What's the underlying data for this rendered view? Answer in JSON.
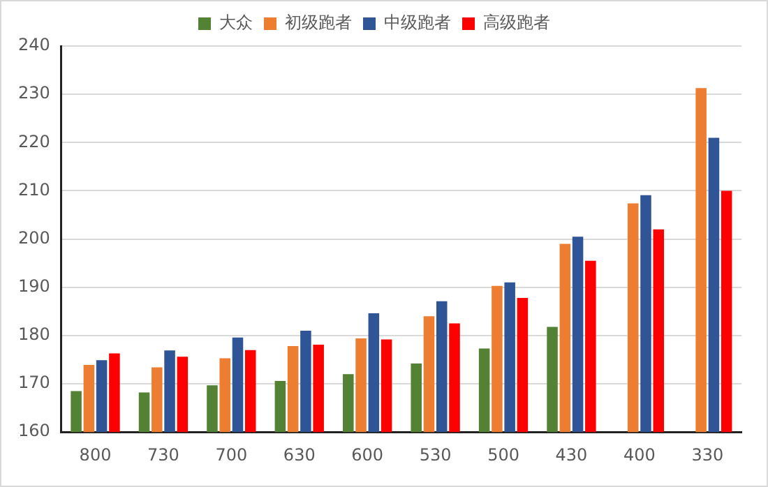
{
  "chart_data": {
    "type": "bar",
    "categories": [
      "800",
      "730",
      "700",
      "630",
      "600",
      "530",
      "500",
      "430",
      "400",
      "330"
    ],
    "series": [
      {
        "name": "大众",
        "color": "#548235",
        "values": [
          168.5,
          168.2,
          169.7,
          170.6,
          172,
          174.2,
          177.3,
          181.8,
          null,
          null
        ]
      },
      {
        "name": "初级跑者",
        "color": "#ed7d31",
        "values": [
          173.9,
          173.4,
          175.3,
          177.8,
          179.4,
          184,
          190.3,
          199,
          207.4,
          231.3
        ]
      },
      {
        "name": "中级跑者",
        "color": "#2f5597",
        "values": [
          174.9,
          176.9,
          179.6,
          181,
          184.6,
          187.1,
          191,
          200.5,
          209.1,
          221
        ]
      },
      {
        "name": "高级跑者",
        "color": "#ff0000",
        "values": [
          176.3,
          175.6,
          177,
          178.1,
          179.2,
          182.5,
          187.8,
          195.5,
          202,
          210
        ]
      }
    ],
    "ylim": [
      160,
      240
    ],
    "yticks": [
      160,
      170,
      180,
      190,
      200,
      210,
      220,
      230,
      240
    ],
    "grid": "y",
    "legend": "top"
  }
}
